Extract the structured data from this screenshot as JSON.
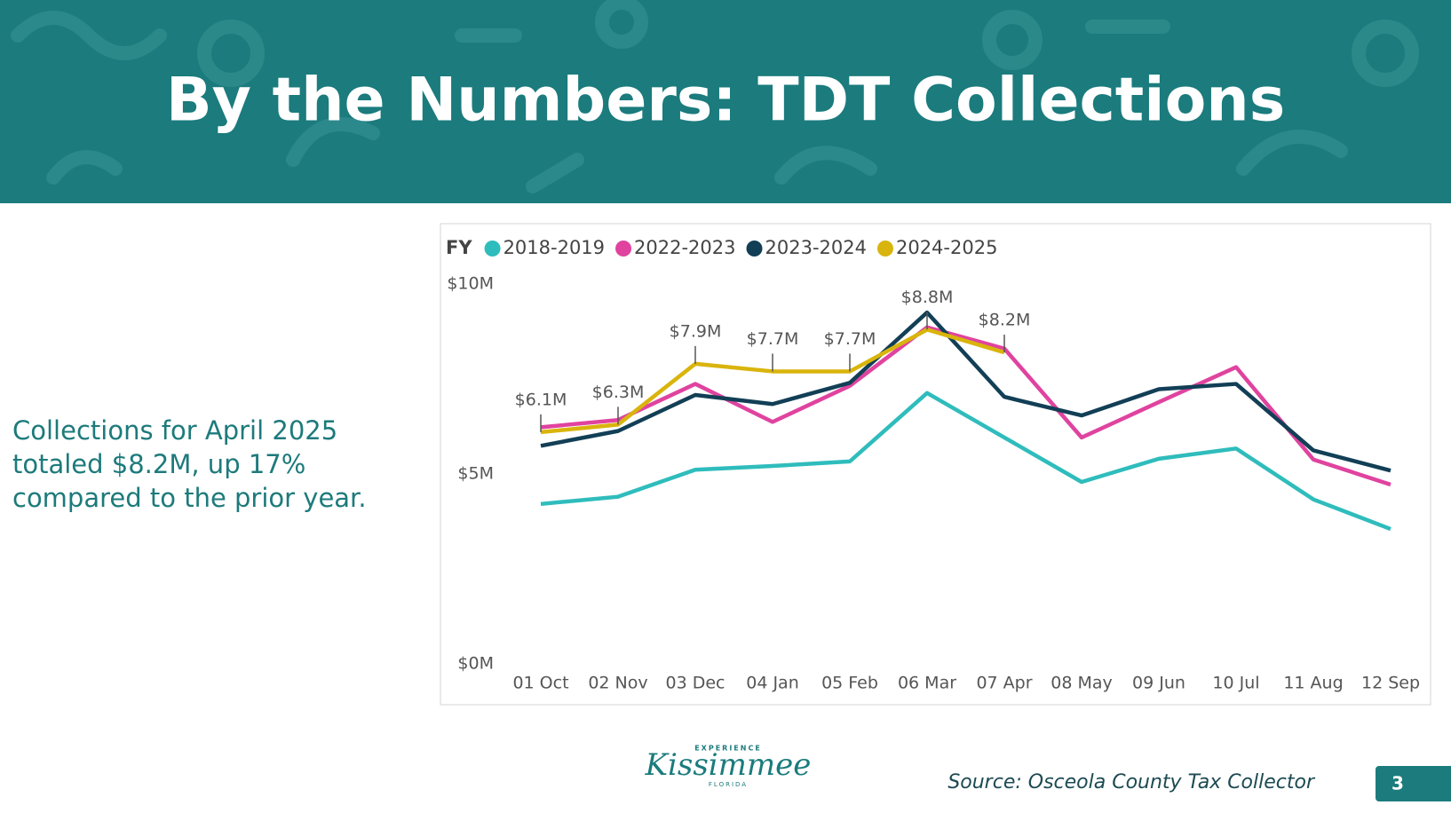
{
  "slide": {
    "title": "By the Numbers: TDT Collections",
    "note": "Collections for April 2025 totaled $8.2M, up 17% compared to the prior year.",
    "source": "Source: Osceola County Tax Collector",
    "page": "3",
    "logo": {
      "top": "EXPERIENCE",
      "name": "Kissimmee",
      "bottom": "FLORIDA"
    }
  },
  "chart_data": {
    "type": "line",
    "legend_title": "FY",
    "categories": [
      "01 Oct",
      "02 Nov",
      "03 Dec",
      "04 Jan",
      "05 Feb",
      "06 Mar",
      "07 Apr",
      "08 May",
      "09 Jun",
      "10 Jul",
      "11 Aug",
      "12 Sep"
    ],
    "series": [
      {
        "name": "2018-2019",
        "color": "#2fbcbc",
        "values": [
          4.21,
          4.4,
          5.11,
          5.21,
          5.33,
          7.13,
          5.96,
          4.79,
          5.4,
          5.67,
          4.33,
          3.55
        ]
      },
      {
        "name": "2022-2023",
        "color": "#e0439f",
        "values": [
          6.23,
          6.42,
          7.37,
          6.37,
          7.32,
          8.86,
          8.3,
          5.96,
          6.89,
          7.81,
          5.38,
          4.72
        ]
      },
      {
        "name": "2023-2024",
        "color": "#123f56",
        "values": [
          5.74,
          6.13,
          7.08,
          6.84,
          7.4,
          9.25,
          7.03,
          6.54,
          7.23,
          7.37,
          5.62,
          5.09
        ]
      },
      {
        "name": "2024-2025",
        "color": "#d9b40c",
        "values": [
          6.1,
          6.3,
          7.9,
          7.7,
          7.7,
          8.8,
          8.2,
          null,
          null,
          null,
          null,
          null
        ],
        "value_labels": [
          "$6.1M",
          "$6.3M",
          "$7.9M",
          "$7.7M",
          "$7.7M",
          "$8.8M",
          "$8.2M",
          null,
          null,
          null,
          null,
          null
        ]
      }
    ],
    "ylim": [
      0,
      10
    ],
    "yticks": [
      {
        "value": 0,
        "label": "$0M"
      },
      {
        "value": 5,
        "label": "$5M"
      },
      {
        "value": 10,
        "label": "$10M"
      }
    ],
    "grid": false,
    "legend": "top-left"
  }
}
